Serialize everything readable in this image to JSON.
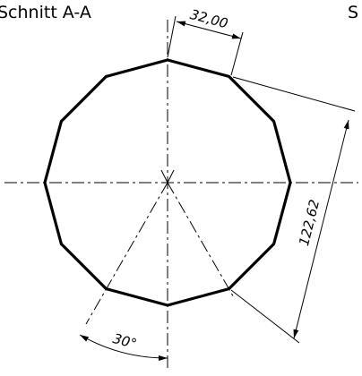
{
  "header": {
    "title": "Schnitt A-A",
    "next_title": "S"
  },
  "dimensions": {
    "edge_length": "32,00",
    "across": "122,62",
    "angle": "30°"
  }
}
